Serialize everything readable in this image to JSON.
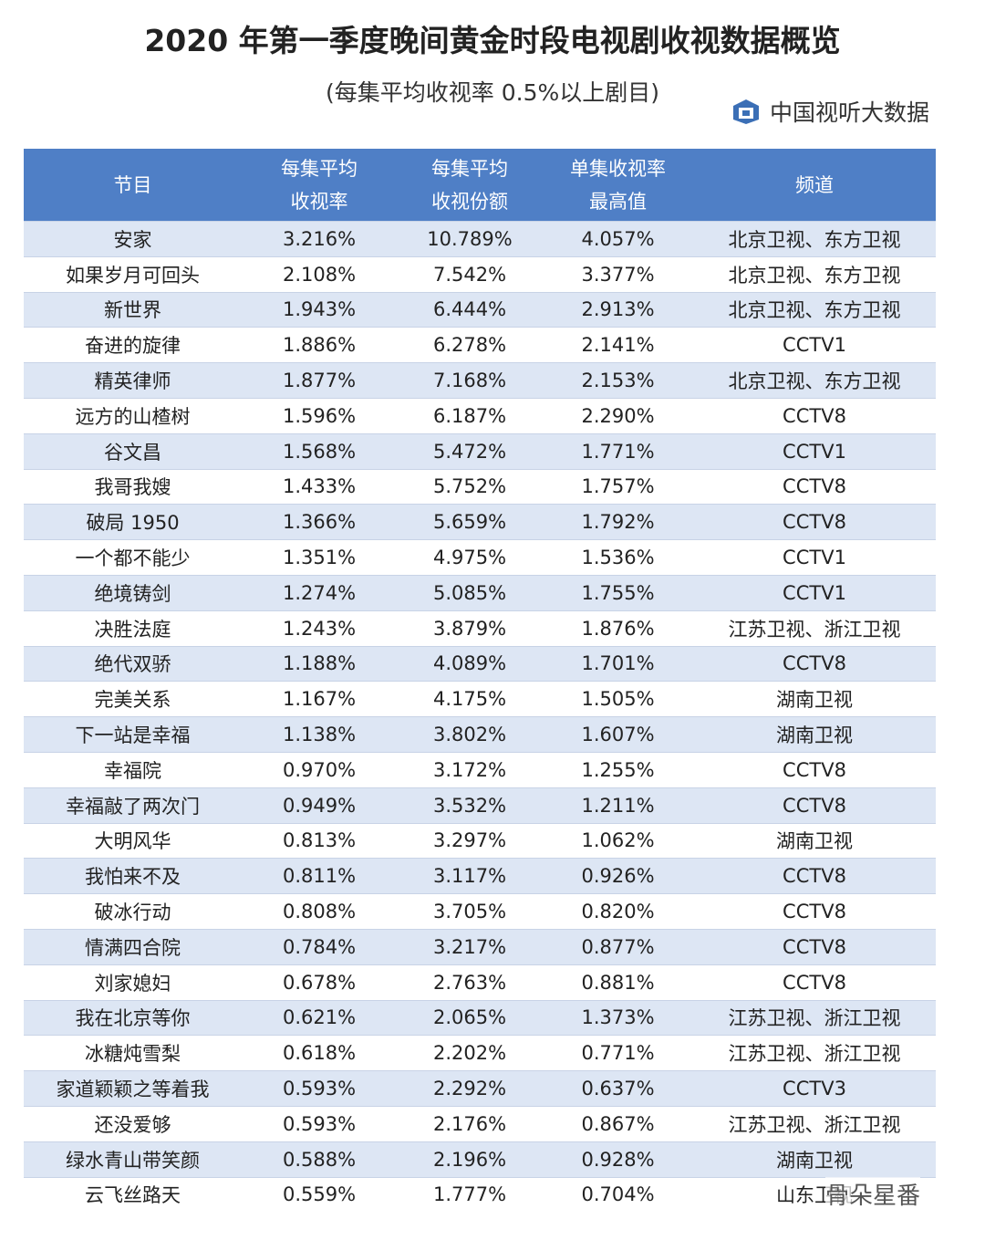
{
  "header": {
    "title": "2020 年第一季度晚间黄金时段电视剧收视数据概览",
    "subtitle": "(每集平均收视率 0.5%以上剧目)",
    "source": "中国视听大数据"
  },
  "table": {
    "columns": [
      [
        "节目"
      ],
      [
        "每集平均",
        "收视率"
      ],
      [
        "每集平均",
        "收视份额"
      ],
      [
        "单集收视率",
        "最高值"
      ],
      [
        "频道"
      ]
    ],
    "rows": [
      [
        "安家",
        "3.216%",
        "10.789%",
        "4.057%",
        "北京卫视、东方卫视"
      ],
      [
        "如果岁月可回头",
        "2.108%",
        "7.542%",
        "3.377%",
        "北京卫视、东方卫视"
      ],
      [
        "新世界",
        "1.943%",
        "6.444%",
        "2.913%",
        "北京卫视、东方卫视"
      ],
      [
        "奋进的旋律",
        "1.886%",
        "6.278%",
        "2.141%",
        "CCTV1"
      ],
      [
        "精英律师",
        "1.877%",
        "7.168%",
        "2.153%",
        "北京卫视、东方卫视"
      ],
      [
        "远方的山楂树",
        "1.596%",
        "6.187%",
        "2.290%",
        "CCTV8"
      ],
      [
        "谷文昌",
        "1.568%",
        "5.472%",
        "1.771%",
        "CCTV1"
      ],
      [
        "我哥我嫂",
        "1.433%",
        "5.752%",
        "1.757%",
        "CCTV8"
      ],
      [
        "破局 1950",
        "1.366%",
        "5.659%",
        "1.792%",
        "CCTV8"
      ],
      [
        "一个都不能少",
        "1.351%",
        "4.975%",
        "1.536%",
        "CCTV1"
      ],
      [
        "绝境铸剑",
        "1.274%",
        "5.085%",
        "1.755%",
        "CCTV1"
      ],
      [
        "决胜法庭",
        "1.243%",
        "3.879%",
        "1.876%",
        "江苏卫视、浙江卫视"
      ],
      [
        "绝代双骄",
        "1.188%",
        "4.089%",
        "1.701%",
        "CCTV8"
      ],
      [
        "完美关系",
        "1.167%",
        "4.175%",
        "1.505%",
        "湖南卫视"
      ],
      [
        "下一站是幸福",
        "1.138%",
        "3.802%",
        "1.607%",
        "湖南卫视"
      ],
      [
        "幸福院",
        "0.970%",
        "3.172%",
        "1.255%",
        "CCTV8"
      ],
      [
        "幸福敲了两次门",
        "0.949%",
        "3.532%",
        "1.211%",
        "CCTV8"
      ],
      [
        "大明风华",
        "0.813%",
        "3.297%",
        "1.062%",
        "湖南卫视"
      ],
      [
        "我怕来不及",
        "0.811%",
        "3.117%",
        "0.926%",
        "CCTV8"
      ],
      [
        "破冰行动",
        "0.808%",
        "3.705%",
        "0.820%",
        "CCTV8"
      ],
      [
        "情满四合院",
        "0.784%",
        "3.217%",
        "0.877%",
        "CCTV8"
      ],
      [
        "刘家媳妇",
        "0.678%",
        "2.763%",
        "0.881%",
        "CCTV8"
      ],
      [
        "我在北京等你",
        "0.621%",
        "2.065%",
        "1.373%",
        "江苏卫视、浙江卫视"
      ],
      [
        "冰糖炖雪梨",
        "0.618%",
        "2.202%",
        "0.771%",
        "江苏卫视、浙江卫视"
      ],
      [
        "家道颖颖之等着我",
        "0.593%",
        "2.292%",
        "0.637%",
        "CCTV3"
      ],
      [
        "还没爱够",
        "0.593%",
        "2.176%",
        "0.867%",
        "江苏卫视、浙江卫视"
      ],
      [
        "绿水青山带笑颜",
        "0.588%",
        "2.196%",
        "0.928%",
        "湖南卫视"
      ],
      [
        "云飞丝路天",
        "0.559%",
        "1.777%",
        "0.704%",
        "山东卫视"
      ]
    ]
  },
  "watermark": "骨朵星番"
}
